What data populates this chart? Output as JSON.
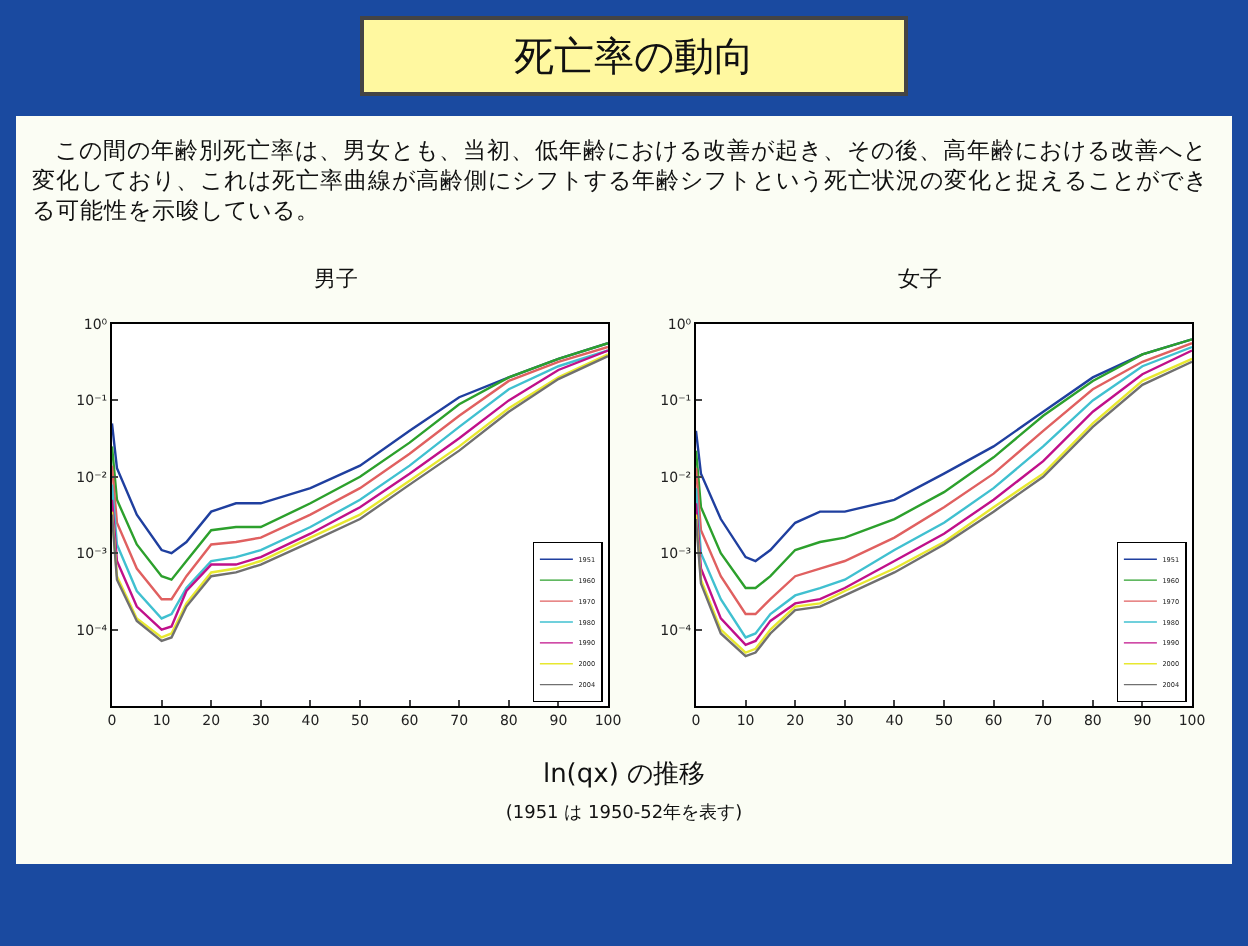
{
  "chart_data": [
    {
      "type": "other",
      "title": "死亡率の動向",
      "annotations": [
        "この間の年齢別死亡率は、男女とも、当初、低年齢における改善が起き、その後、高年齢における改善へと変化しており、これは死亡率曲線が高齢側にシフトする年齢シフトという死亡状況の変化と捉えることができる可能性を示唆している。",
        "ln(qx) の推移",
        "(1951 は 1950-52年を表す)"
      ]
    },
    {
      "type": "line",
      "title": "男子",
      "log": "y",
      "grid": false,
      "legend": "bottom right",
      "line_style": "solid",
      "marker": "none",
      "x": [
        0,
        1,
        5,
        10,
        12,
        15,
        20,
        25,
        30,
        40,
        50,
        60,
        70,
        80,
        90,
        100
      ],
      "xlim": [
        0,
        100
      ],
      "xticks": [
        0,
        10,
        20,
        30,
        40,
        50,
        60,
        70,
        80,
        90,
        100
      ],
      "ylim": [
        1e-05,
        1
      ],
      "yticks": [
        {
          "value": 1e-05,
          "label": null
        },
        {
          "value": 0.0001,
          "label": "10⁻⁴"
        },
        {
          "value": 0.001,
          "label": "10⁻³"
        },
        {
          "value": 0.01,
          "label": "10⁻²"
        },
        {
          "value": 0.1,
          "label": "10⁻¹"
        },
        {
          "value": 1,
          "label": "10⁰"
        }
      ],
      "series": [
        {
          "name": "1951",
          "color": "#1f3f9f",
          "values": [
            0.05,
            0.013,
            0.0032,
            0.0011,
            0.001,
            0.0014,
            0.0035,
            0.0045,
            0.0045,
            0.0071,
            0.014,
            0.04,
            0.11,
            0.2,
            0.35,
            0.56
          ]
        },
        {
          "name": "1960",
          "color": "#2ca02c",
          "values": [
            0.025,
            0.005,
            0.0013,
            0.0005,
            0.00045,
            0.00079,
            0.002,
            0.0022,
            0.0022,
            0.0045,
            0.01,
            0.028,
            0.089,
            0.2,
            0.35,
            0.56
          ]
        },
        {
          "name": "1970",
          "color": "#e06060",
          "values": [
            0.014,
            0.0025,
            0.00063,
            0.00025,
            0.00025,
            0.0005,
            0.0013,
            0.0014,
            0.0016,
            0.0032,
            0.0071,
            0.02,
            0.063,
            0.18,
            0.32,
            0.5
          ]
        },
        {
          "name": "1980",
          "color": "#40c0d0",
          "values": [
            0.0079,
            0.0013,
            0.00032,
            0.00014,
            0.00016,
            0.00035,
            0.00079,
            0.00089,
            0.0011,
            0.0022,
            0.005,
            0.014,
            0.045,
            0.14,
            0.28,
            0.45
          ]
        },
        {
          "name": "1990",
          "color": "#c0108a",
          "values": [
            0.005,
            0.00079,
            0.0002,
            0.0001,
            0.00011,
            0.00032,
            0.00071,
            0.00071,
            0.00089,
            0.0018,
            0.004,
            0.011,
            0.032,
            0.1,
            0.25,
            0.45
          ]
        },
        {
          "name": "2000",
          "color": "#e8e830",
          "values": [
            0.0035,
            0.0005,
            0.00014,
            7.9e-05,
            8.9e-05,
            0.00022,
            0.00056,
            0.00063,
            0.00079,
            0.0016,
            0.0032,
            0.0089,
            0.025,
            0.079,
            0.2,
            0.4
          ]
        },
        {
          "name": "2004",
          "color": "#707070",
          "values": [
            0.0032,
            0.00045,
            0.00013,
            7.1e-05,
            7.9e-05,
            0.0002,
            0.0005,
            0.00056,
            0.00071,
            0.0014,
            0.0028,
            0.0079,
            0.022,
            0.071,
            0.19,
            0.38
          ]
        }
      ]
    },
    {
      "type": "line",
      "title": "女子",
      "log": "y",
      "grid": false,
      "legend": "bottom right",
      "line_style": "solid",
      "marker": "none",
      "x": [
        0,
        1,
        5,
        10,
        12,
        15,
        20,
        25,
        30,
        40,
        50,
        60,
        70,
        80,
        90,
        100
      ],
      "xlim": [
        0,
        100
      ],
      "xticks": [
        0,
        10,
        20,
        30,
        40,
        50,
        60,
        70,
        80,
        90,
        100
      ],
      "ylim": [
        1e-05,
        1
      ],
      "yticks": [
        {
          "value": 1e-05,
          "label": null
        },
        {
          "value": 0.0001,
          "label": "10⁻⁴"
        },
        {
          "value": 0.001,
          "label": "10⁻³"
        },
        {
          "value": 0.01,
          "label": "10⁻²"
        },
        {
          "value": 0.1,
          "label": "10⁻¹"
        },
        {
          "value": 1,
          "label": "10⁰"
        }
      ],
      "series": [
        {
          "name": "1951",
          "color": "#1f3f9f",
          "values": [
            0.04,
            0.011,
            0.0028,
            0.00089,
            0.00079,
            0.0011,
            0.0025,
            0.0035,
            0.0035,
            0.005,
            0.011,
            0.025,
            0.071,
            0.2,
            0.4,
            0.63
          ]
        },
        {
          "name": "1960",
          "color": "#2ca02c",
          "values": [
            0.022,
            0.004,
            0.001,
            0.00035,
            0.00035,
            0.0005,
            0.0011,
            0.0014,
            0.0016,
            0.0028,
            0.0063,
            0.018,
            0.063,
            0.18,
            0.4,
            0.63
          ]
        },
        {
          "name": "1970",
          "color": "#e06060",
          "values": [
            0.013,
            0.002,
            0.0005,
            0.00016,
            0.00016,
            0.00025,
            0.0005,
            0.00063,
            0.00079,
            0.0016,
            0.004,
            0.011,
            0.04,
            0.14,
            0.32,
            0.56
          ]
        },
        {
          "name": "1980",
          "color": "#40c0d0",
          "values": [
            0.0071,
            0.001,
            0.00025,
            7.9e-05,
            8.9e-05,
            0.00016,
            0.00028,
            0.00035,
            0.00045,
            0.0011,
            0.0025,
            0.0071,
            0.025,
            0.1,
            0.28,
            0.5
          ]
        },
        {
          "name": "1990",
          "color": "#c0108a",
          "values": [
            0.0045,
            0.00063,
            0.00014,
            6.3e-05,
            7.1e-05,
            0.00013,
            0.00022,
            0.00025,
            0.00035,
            0.00079,
            0.0018,
            0.005,
            0.016,
            0.071,
            0.22,
            0.45
          ]
        },
        {
          "name": "2000",
          "color": "#e8e830",
          "values": [
            0.0032,
            0.00045,
            0.0001,
            5e-05,
            5.6e-05,
            0.0001,
            0.0002,
            0.00022,
            0.00032,
            0.00063,
            0.0014,
            0.004,
            0.011,
            0.05,
            0.18,
            0.35
          ]
        },
        {
          "name": "2004",
          "color": "#707070",
          "values": [
            0.0028,
            0.0004,
            8.9e-05,
            4.5e-05,
            5e-05,
            8.9e-05,
            0.00018,
            0.0002,
            0.00028,
            0.00056,
            0.0013,
            0.0035,
            0.01,
            0.045,
            0.16,
            0.32
          ]
        }
      ]
    }
  ]
}
